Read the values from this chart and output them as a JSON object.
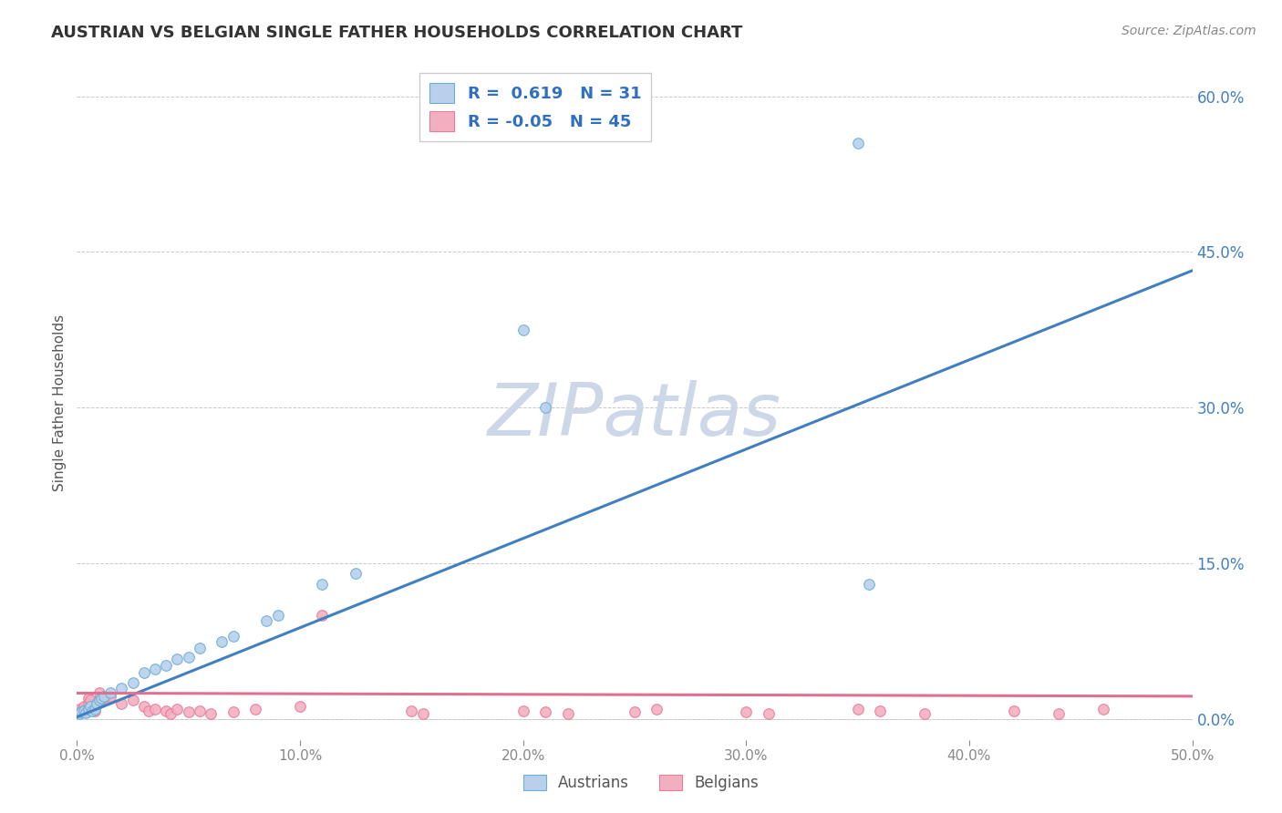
{
  "title": "AUSTRIAN VS BELGIAN SINGLE FATHER HOUSEHOLDS CORRELATION CHART",
  "source": "Source: ZipAtlas.com",
  "ylabel": "Single Father Households",
  "xlim": [
    0.0,
    0.5
  ],
  "ylim": [
    -0.02,
    0.63
  ],
  "yticks": [
    0.0,
    0.15,
    0.3,
    0.45,
    0.6
  ],
  "xticks": [
    0.0,
    0.1,
    0.2,
    0.3,
    0.4,
    0.5
  ],
  "austrians_R": 0.619,
  "austrians_N": 31,
  "belgians_R": -0.05,
  "belgians_N": 45,
  "austrians_scatter_color": "#b8d0eb",
  "austrians_edge_color": "#6aaed6",
  "belgians_scatter_color": "#f2afc0",
  "belgians_edge_color": "#e87a9a",
  "austrians_line_color": "#4080c0",
  "belgians_line_color": "#e07090",
  "legend_text_color": "#3070c0",
  "background_color": "#ffffff",
  "grid_color": "#bbbbbb",
  "title_color": "#333333",
  "watermark_color": "#ccd8e8",
  "tick_color": "#4080c0",
  "aus_line_x0": 0.0,
  "aus_line_y0": 0.002,
  "aus_line_x1": 0.5,
  "aus_line_y1": 0.432,
  "bel_line_x0": 0.0,
  "bel_line_y0": 0.025,
  "bel_line_x1": 0.5,
  "bel_line_y1": 0.022,
  "austrians_x": [
    0.001,
    0.002,
    0.003,
    0.004,
    0.005,
    0.006,
    0.007,
    0.008,
    0.009,
    0.01,
    0.011,
    0.012,
    0.015,
    0.02,
    0.025,
    0.03,
    0.035,
    0.04,
    0.045,
    0.05,
    0.055,
    0.065,
    0.07,
    0.085,
    0.09,
    0.11,
    0.125,
    0.2,
    0.21,
    0.35,
    0.355
  ],
  "austrians_y": [
    0.005,
    0.007,
    0.008,
    0.006,
    0.01,
    0.012,
    0.008,
    0.01,
    0.015,
    0.018,
    0.02,
    0.022,
    0.025,
    0.03,
    0.035,
    0.045,
    0.048,
    0.052,
    0.058,
    0.06,
    0.068,
    0.075,
    0.08,
    0.095,
    0.1,
    0.13,
    0.14,
    0.375,
    0.3,
    0.555,
    0.13
  ],
  "belgians_x": [
    0.001,
    0.002,
    0.003,
    0.004,
    0.005,
    0.005,
    0.006,
    0.006,
    0.007,
    0.008,
    0.009,
    0.01,
    0.01,
    0.012,
    0.015,
    0.02,
    0.025,
    0.03,
    0.032,
    0.035,
    0.04,
    0.042,
    0.045,
    0.05,
    0.055,
    0.06,
    0.07,
    0.08,
    0.1,
    0.11,
    0.15,
    0.155,
    0.2,
    0.21,
    0.22,
    0.25,
    0.26,
    0.3,
    0.31,
    0.35,
    0.36,
    0.38,
    0.42,
    0.44,
    0.46
  ],
  "belgians_y": [
    0.01,
    0.008,
    0.012,
    0.007,
    0.015,
    0.02,
    0.01,
    0.018,
    0.012,
    0.008,
    0.015,
    0.018,
    0.025,
    0.02,
    0.022,
    0.015,
    0.018,
    0.012,
    0.008,
    0.01,
    0.008,
    0.005,
    0.01,
    0.007,
    0.008,
    0.005,
    0.007,
    0.01,
    0.012,
    0.1,
    0.008,
    0.005,
    0.008,
    0.007,
    0.005,
    0.007,
    0.01,
    0.007,
    0.005,
    0.01,
    0.008,
    0.005,
    0.008,
    0.005,
    0.01
  ]
}
